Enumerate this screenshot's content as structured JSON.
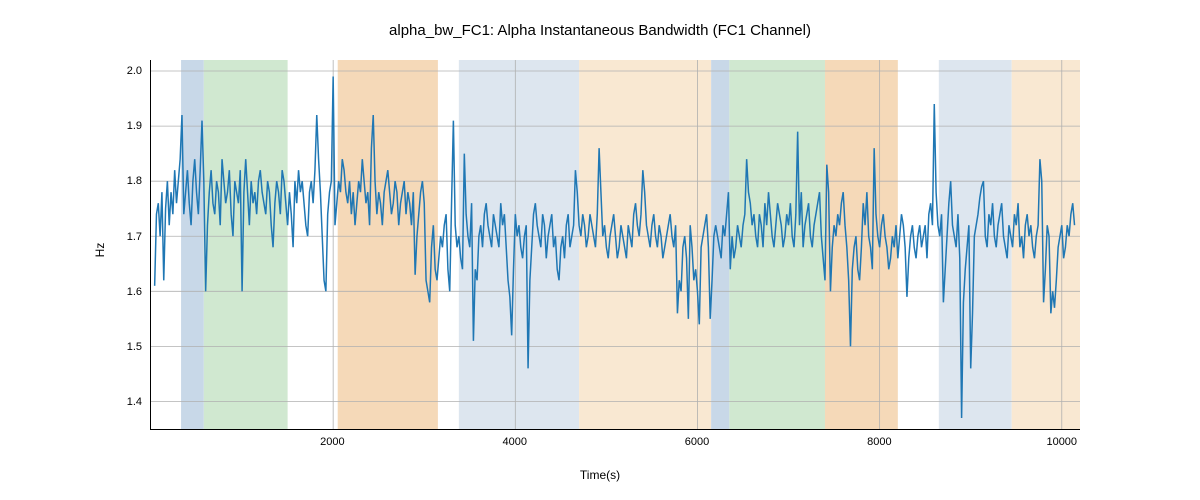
{
  "chart": {
    "type": "line",
    "title": "alpha_bw_FC1: Alpha Instantaneous Bandwidth (FC1 Channel)",
    "title_fontsize": 15,
    "xlabel": "Time(s)",
    "ylabel": "Hz",
    "label_fontsize": 12,
    "tick_fontsize": 11,
    "background_color": "#ffffff",
    "grid_color": "#b0b0b0",
    "grid_width": 0.8,
    "line_color": "#1f77b4",
    "line_width": 1.5,
    "xlim": [
      0,
      10200
    ],
    "ylim": [
      1.35,
      2.02
    ],
    "xticks": [
      2000,
      4000,
      6000,
      8000,
      10000
    ],
    "yticks": [
      1.4,
      1.5,
      1.6,
      1.7,
      1.8,
      1.9,
      2.0
    ],
    "regions": [
      {
        "start": 330,
        "end": 580,
        "color": "#c8d8e8",
        "opacity": 1
      },
      {
        "start": 580,
        "end": 1500,
        "color": "#d0e8d0",
        "opacity": 1
      },
      {
        "start": 2050,
        "end": 3150,
        "color": "#f5d9b8",
        "opacity": 1
      },
      {
        "start": 3380,
        "end": 4700,
        "color": "#dde6ef",
        "opacity": 1
      },
      {
        "start": 4700,
        "end": 6150,
        "color": "#f9e8d2",
        "opacity": 1
      },
      {
        "start": 6150,
        "end": 6350,
        "color": "#c8d8e8",
        "opacity": 1
      },
      {
        "start": 6350,
        "end": 7400,
        "color": "#d0e8d0",
        "opacity": 1
      },
      {
        "start": 7400,
        "end": 8200,
        "color": "#f5d9b8",
        "opacity": 1
      },
      {
        "start": 8650,
        "end": 9450,
        "color": "#dde6ef",
        "opacity": 1
      },
      {
        "start": 9450,
        "end": 10200,
        "color": "#f9e8d2",
        "opacity": 1
      }
    ],
    "data_x_step": 20,
    "data_x_start": 40,
    "data_y": [
      1.61,
      1.74,
      1.76,
      1.7,
      1.78,
      1.62,
      1.75,
      1.8,
      1.72,
      1.78,
      1.74,
      1.82,
      1.76,
      1.8,
      1.84,
      1.92,
      1.74,
      1.78,
      1.82,
      1.76,
      1.72,
      1.8,
      1.84,
      1.78,
      1.74,
      1.82,
      1.91,
      1.8,
      1.6,
      1.72,
      1.78,
      1.82,
      1.76,
      1.74,
      1.8,
      1.78,
      1.72,
      1.84,
      1.8,
      1.76,
      1.78,
      1.82,
      1.74,
      1.7,
      1.8,
      1.78,
      1.76,
      1.82,
      1.6,
      1.78,
      1.84,
      1.78,
      1.72,
      1.8,
      1.76,
      1.78,
      1.74,
      1.8,
      1.82,
      1.78,
      1.76,
      1.74,
      1.8,
      1.78,
      1.72,
      1.68,
      1.76,
      1.8,
      1.78,
      1.74,
      1.82,
      1.8,
      1.76,
      1.72,
      1.78,
      1.74,
      1.68,
      1.8,
      1.76,
      1.82,
      1.78,
      1.8,
      1.76,
      1.72,
      1.7,
      1.78,
      1.8,
      1.76,
      1.82,
      1.92,
      1.84,
      1.78,
      1.7,
      1.62,
      1.6,
      1.74,
      1.78,
      1.8,
      1.99,
      1.72,
      1.76,
      1.8,
      1.78,
      1.84,
      1.82,
      1.78,
      1.76,
      1.8,
      1.74,
      1.78,
      1.72,
      1.76,
      1.8,
      1.78,
      1.84,
      1.8,
      1.76,
      1.78,
      1.72,
      1.86,
      1.92,
      1.8,
      1.74,
      1.78,
      1.76,
      1.72,
      1.78,
      1.8,
      1.82,
      1.78,
      1.74,
      1.76,
      1.8,
      1.78,
      1.72,
      1.76,
      1.78,
      1.8,
      1.74,
      1.78,
      1.76,
      1.72,
      1.78,
      1.63,
      1.7,
      1.74,
      1.78,
      1.8,
      1.76,
      1.62,
      1.6,
      1.58,
      1.68,
      1.72,
      1.64,
      1.62,
      1.66,
      1.7,
      1.68,
      1.72,
      1.74,
      1.64,
      1.6,
      1.76,
      1.91,
      1.72,
      1.68,
      1.7,
      1.66,
      1.64,
      1.85,
      1.74,
      1.7,
      1.68,
      1.76,
      1.51,
      1.64,
      1.62,
      1.7,
      1.72,
      1.68,
      1.74,
      1.76,
      1.72,
      1.7,
      1.68,
      1.74,
      1.72,
      1.7,
      1.68,
      1.76,
      1.72,
      1.74,
      1.68,
      1.62,
      1.59,
      1.52,
      1.64,
      1.74,
      1.7,
      1.72,
      1.68,
      1.66,
      1.7,
      1.72,
      1.46,
      1.62,
      1.68,
      1.74,
      1.76,
      1.72,
      1.7,
      1.68,
      1.74,
      1.72,
      1.66,
      1.7,
      1.72,
      1.74,
      1.68,
      1.7,
      1.64,
      1.62,
      1.68,
      1.7,
      1.66,
      1.72,
      1.74,
      1.68,
      1.7,
      1.72,
      1.82,
      1.78,
      1.72,
      1.7,
      1.74,
      1.72,
      1.68,
      1.7,
      1.74,
      1.72,
      1.7,
      1.68,
      1.74,
      1.86,
      1.78,
      1.7,
      1.72,
      1.68,
      1.66,
      1.7,
      1.72,
      1.74,
      1.7,
      1.66,
      1.68,
      1.72,
      1.7,
      1.68,
      1.66,
      1.72,
      1.7,
      1.68,
      1.74,
      1.76,
      1.72,
      1.7,
      1.74,
      1.82,
      1.78,
      1.72,
      1.7,
      1.68,
      1.72,
      1.74,
      1.7,
      1.68,
      1.72,
      1.7,
      1.66,
      1.68,
      1.7,
      1.72,
      1.74,
      1.7,
      1.68,
      1.72,
      1.56,
      1.62,
      1.6,
      1.68,
      1.7,
      1.66,
      1.55,
      1.72,
      1.68,
      1.62,
      1.64,
      1.6,
      1.54,
      1.68,
      1.7,
      1.72,
      1.74,
      1.68,
      1.55,
      1.62,
      1.7,
      1.72,
      1.7,
      1.68,
      1.66,
      1.72,
      1.7,
      1.74,
      1.78,
      1.64,
      1.7,
      1.66,
      1.68,
      1.72,
      1.7,
      1.68,
      1.72,
      1.74,
      1.84,
      1.78,
      1.76,
      1.72,
      1.74,
      1.7,
      1.68,
      1.74,
      1.72,
      1.68,
      1.76,
      1.72,
      1.78,
      1.74,
      1.7,
      1.68,
      1.72,
      1.76,
      1.74,
      1.72,
      1.68,
      1.7,
      1.74,
      1.72,
      1.76,
      1.7,
      1.68,
      1.74,
      1.89,
      1.72,
      1.78,
      1.68,
      1.72,
      1.74,
      1.76,
      1.7,
      1.68,
      1.72,
      1.74,
      1.76,
      1.78,
      1.7,
      1.66,
      1.62,
      1.83,
      1.78,
      1.6,
      1.68,
      1.72,
      1.7,
      1.74,
      1.72,
      1.76,
      1.78,
      1.72,
      1.68,
      1.62,
      1.5,
      1.64,
      1.68,
      1.7,
      1.64,
      1.62,
      1.68,
      1.76,
      1.72,
      1.78,
      1.7,
      1.68,
      1.64,
      1.86,
      1.74,
      1.7,
      1.68,
      1.72,
      1.74,
      1.7,
      1.68,
      1.64,
      1.66,
      1.7,
      1.68,
      1.72,
      1.66,
      1.7,
      1.74,
      1.72,
      1.68,
      1.59,
      1.66,
      1.7,
      1.72,
      1.68,
      1.66,
      1.7,
      1.72,
      1.68,
      1.7,
      1.72,
      1.66,
      1.74,
      1.76,
      1.72,
      1.94,
      1.78,
      1.72,
      1.7,
      1.74,
      1.58,
      1.64,
      1.7,
      1.76,
      1.8,
      1.72,
      1.7,
      1.68,
      1.74,
      1.66,
      1.37,
      1.58,
      1.64,
      1.68,
      1.72,
      1.46,
      1.56,
      1.7,
      1.72,
      1.74,
      1.77,
      1.79,
      1.8,
      1.7,
      1.68,
      1.74,
      1.72,
      1.76,
      1.7,
      1.68,
      1.72,
      1.74,
      1.76,
      1.7,
      1.68,
      1.66,
      1.72,
      1.7,
      1.68,
      1.74,
      1.72,
      1.76,
      1.68,
      1.7,
      1.66,
      1.72,
      1.74,
      1.7,
      1.72,
      1.68,
      1.66,
      1.7,
      1.72,
      1.84,
      1.8,
      1.58,
      1.64,
      1.72,
      1.7,
      1.56,
      1.6,
      1.57,
      1.62,
      1.68,
      1.7,
      1.72,
      1.66,
      1.68,
      1.72,
      1.7,
      1.74,
      1.76,
      1.72
    ]
  }
}
